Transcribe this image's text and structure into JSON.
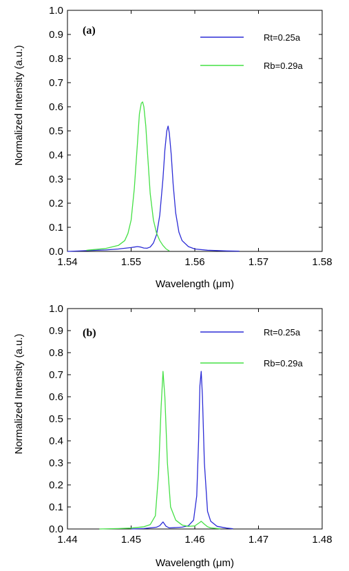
{
  "chart_data": [
    {
      "type": "line",
      "panel_label": "(a)",
      "xlabel": "Wavelength (μm)",
      "ylabel": "Normalized Intensity (a.u.)",
      "xlim": [
        1.54,
        1.58
      ],
      "ylim": [
        0.0,
        1.0
      ],
      "xticks": [
        1.54,
        1.55,
        1.56,
        1.57,
        1.58
      ],
      "xtick_labels": [
        "1.54",
        "1.55",
        "1.56",
        "1.57",
        "1.58"
      ],
      "yticks": [
        0,
        0.1,
        0.2,
        0.3,
        0.4,
        0.5,
        0.6,
        0.7,
        0.8,
        0.9,
        1.0
      ],
      "ytick_labels": [
        "0.0",
        "0.1",
        "0.2",
        "0.3",
        "0.4",
        "0.5",
        "0.6",
        "0.7",
        "0.8",
        "0.9",
        "1.0"
      ],
      "grid": false,
      "legend_position": "top-right",
      "series": [
        {
          "name": "Rt=0.25a",
          "color": "#2b2bd6",
          "x": [
            1.54,
            1.543,
            1.546,
            1.548,
            1.55,
            1.5505,
            1.551,
            1.5515,
            1.552,
            1.5525,
            1.553,
            1.5535,
            1.554,
            1.5545,
            1.555,
            1.5553,
            1.5556,
            1.5558,
            1.556,
            1.5563,
            1.5566,
            1.557,
            1.5575,
            1.558,
            1.559,
            1.56,
            1.562,
            1.565,
            1.567
          ],
          "y": [
            0.0,
            0.003,
            0.006,
            0.01,
            0.016,
            0.018,
            0.02,
            0.018,
            0.014,
            0.013,
            0.018,
            0.035,
            0.07,
            0.15,
            0.3,
            0.42,
            0.5,
            0.52,
            0.49,
            0.4,
            0.28,
            0.16,
            0.08,
            0.045,
            0.02,
            0.01,
            0.005,
            0.002,
            0.001
          ]
        },
        {
          "name": "Rb=0.29a",
          "color": "#44e044",
          "x": [
            1.543,
            1.546,
            1.548,
            1.549,
            1.5495,
            1.55,
            1.5505,
            1.551,
            1.5513,
            1.5516,
            1.5518,
            1.552,
            1.5523,
            1.5526,
            1.553,
            1.5535,
            1.554,
            1.5545,
            1.555,
            1.5555,
            1.556
          ],
          "y": [
            0.005,
            0.012,
            0.025,
            0.045,
            0.075,
            0.13,
            0.26,
            0.45,
            0.57,
            0.615,
            0.62,
            0.6,
            0.52,
            0.4,
            0.24,
            0.13,
            0.075,
            0.045,
            0.025,
            0.01,
            0.002
          ]
        }
      ]
    },
    {
      "type": "line",
      "panel_label": "(b)",
      "xlabel": "Wavelength (μm)",
      "ylabel": "Normalized Intensity (a.u.)",
      "xlim": [
        1.44,
        1.48
      ],
      "ylim": [
        0.0,
        1.0
      ],
      "xticks": [
        1.44,
        1.45,
        1.46,
        1.47,
        1.48
      ],
      "xtick_labels": [
        "1.44",
        "1.45",
        "1.46",
        "1.47",
        "1.48"
      ],
      "yticks": [
        0,
        0.1,
        0.2,
        0.3,
        0.4,
        0.5,
        0.6,
        0.7,
        0.8,
        0.9,
        1.0
      ],
      "ytick_labels": [
        "0.0",
        "0.1",
        "0.2",
        "0.3",
        "0.4",
        "0.5",
        "0.6",
        "0.7",
        "0.8",
        "0.9",
        "1.0"
      ],
      "grid": false,
      "legend_position": "top-right",
      "series": [
        {
          "name": "Rt=0.25a",
          "color": "#2b2bd6",
          "x": [
            1.45,
            1.452,
            1.454,
            1.4545,
            1.455,
            1.4555,
            1.456,
            1.458,
            1.459,
            1.4598,
            1.4603,
            1.4606,
            1.4608,
            1.461,
            1.4612,
            1.4615,
            1.462,
            1.4625,
            1.4635,
            1.465,
            1.466
          ],
          "y": [
            0.0,
            0.002,
            0.008,
            0.015,
            0.032,
            0.012,
            0.005,
            0.008,
            0.015,
            0.04,
            0.15,
            0.4,
            0.65,
            0.715,
            0.6,
            0.3,
            0.08,
            0.035,
            0.012,
            0.004,
            0.001
          ]
        },
        {
          "name": "Rb=0.29a",
          "color": "#44e044",
          "x": [
            1.445,
            1.448,
            1.45,
            1.452,
            1.453,
            1.4538,
            1.4543,
            1.4547,
            1.455,
            1.4553,
            1.4557,
            1.4562,
            1.457,
            1.458,
            1.459,
            1.46,
            1.4608,
            1.461,
            1.4615,
            1.462,
            1.4625,
            1.464
          ],
          "y": [
            0.0,
            0.002,
            0.004,
            0.01,
            0.02,
            0.06,
            0.25,
            0.55,
            0.715,
            0.6,
            0.3,
            0.1,
            0.04,
            0.018,
            0.012,
            0.014,
            0.03,
            0.035,
            0.022,
            0.01,
            0.005,
            0.001
          ]
        }
      ]
    }
  ]
}
